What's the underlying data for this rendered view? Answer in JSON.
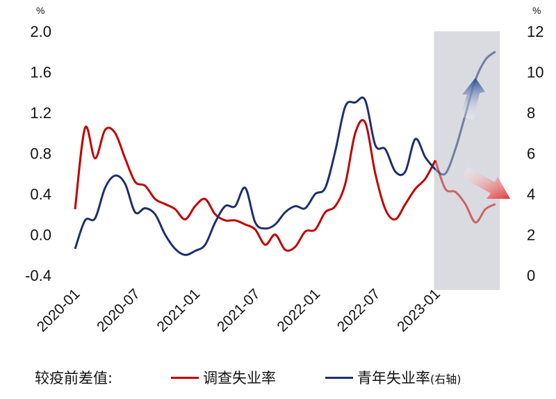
{
  "chart_data": {
    "type": "line",
    "left_axis": {
      "unit": "%",
      "ylim": [
        -0.4,
        2.0
      ],
      "ticks": [
        "2.0",
        "1.6",
        "1.2",
        "0.8",
        "0.4",
        "0.0",
        "-0.4"
      ],
      "tick_values": [
        2.0,
        1.6,
        1.2,
        0.8,
        0.4,
        0.0,
        -0.4
      ]
    },
    "right_axis": {
      "unit": "%",
      "ylim": [
        0,
        12
      ],
      "ticks": [
        "12",
        "10",
        "8",
        "6",
        "4",
        "2",
        "0"
      ],
      "tick_values": [
        12,
        10,
        8,
        6,
        4,
        2,
        0
      ]
    },
    "x_ticks": [
      "2020-01",
      "2020-07",
      "2021-01",
      "2021-07",
      "2022-01",
      "2022-07",
      "2023-01"
    ],
    "x_tick_index": [
      0,
      6,
      12,
      18,
      24,
      30,
      36
    ],
    "highlight": {
      "from_index": 36,
      "to_index": 40.5,
      "color": "#d9dbe1"
    },
    "legend_title": "较疫前差值:",
    "series": [
      {
        "name": "调查失业率",
        "axis": "left",
        "color": "#c00000",
        "values": [
          0.25,
          1.05,
          0.75,
          1.03,
          1.0,
          0.75,
          0.52,
          0.48,
          0.35,
          0.3,
          0.25,
          0.15,
          0.28,
          0.35,
          0.2,
          0.14,
          0.14,
          0.1,
          0.05,
          -0.1,
          0.0,
          -0.15,
          -0.12,
          0.03,
          0.05,
          0.22,
          0.28,
          0.5,
          1.0,
          1.1,
          0.6,
          0.25,
          0.15,
          0.3,
          0.45,
          0.55,
          0.73,
          0.45,
          0.42,
          0.3,
          0.12,
          0.25,
          0.3
        ]
      },
      {
        "name": "青年失业率",
        "note": "(右轴)",
        "axis": "right",
        "color": "#1f2f6b",
        "values": [
          1.3,
          2.7,
          2.8,
          4.3,
          4.9,
          4.5,
          3.1,
          3.3,
          3.0,
          2.0,
          1.3,
          1.0,
          1.2,
          1.5,
          2.6,
          3.4,
          3.4,
          4.3,
          2.6,
          2.3,
          2.5,
          3.1,
          3.4,
          3.3,
          4.0,
          4.3,
          6.1,
          8.3,
          8.5,
          8.6,
          6.4,
          6.2,
          5.1,
          5.1,
          6.7,
          5.8,
          5.2,
          5.0,
          6.2,
          7.9,
          9.6,
          10.6,
          11.0
        ]
      }
    ],
    "arrows": [
      {
        "name": "up-arrow",
        "color": "#2a4d8f"
      },
      {
        "name": "down-arrow",
        "color": "#e03030"
      }
    ]
  }
}
